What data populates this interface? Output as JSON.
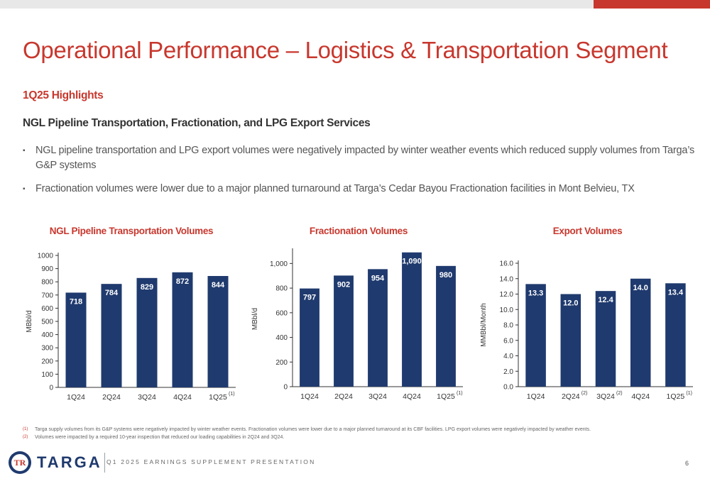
{
  "slide": {
    "title": "Operational Performance – Logistics & Transportation Segment",
    "highlights_heading": "1Q25 Highlights",
    "section_heading": "NGL Pipeline Transportation, Fractionation, and LPG Export Services",
    "bullets": [
      "NGL pipeline transportation and LPG export volumes were negatively impacted by winter weather events which reduced supply volumes from Targa’s G&P systems",
      "Fractionation volumes were lower due to a major planned turnaround at Targa’s Cedar Bayou Fractionation facilities in Mont Belvieu, TX"
    ],
    "bullet_marker": "▪"
  },
  "chart_data": [
    {
      "type": "bar",
      "title": "NGL Pipeline Transportation Volumes",
      "categories": [
        "1Q24",
        "2Q24",
        "3Q24",
        "4Q24",
        "1Q25"
      ],
      "category_superscripts": [
        "",
        "",
        "",
        "",
        "(1)"
      ],
      "values": [
        718,
        784,
        829,
        872,
        844
      ],
      "value_labels": [
        "718",
        "784",
        "829",
        "872",
        "844"
      ],
      "ylabel": "MBbl/d",
      "ylim": [
        0,
        1000
      ],
      "yticks": [
        0,
        100,
        200,
        300,
        400,
        500,
        600,
        700,
        800,
        900,
        1000
      ],
      "ytick_labels": [
        "0",
        "100",
        "200",
        "300",
        "400",
        "500",
        "600",
        "700",
        "800",
        "900",
        "1000"
      ],
      "grid": false,
      "bar_color": "#1f3a6e"
    },
    {
      "type": "bar",
      "title": "Fractionation Volumes",
      "categories": [
        "1Q24",
        "2Q24",
        "3Q24",
        "4Q24",
        "1Q25"
      ],
      "category_superscripts": [
        "",
        "",
        "",
        "",
        "(1)"
      ],
      "values": [
        797,
        902,
        954,
        1090,
        980
      ],
      "value_labels": [
        "797",
        "902",
        "954",
        "1,090",
        "980"
      ],
      "ylabel": "MBbl/d",
      "ylim": [
        0,
        1100
      ],
      "yticks": [
        0,
        200,
        400,
        600,
        800,
        1000
      ],
      "ytick_labels": [
        "0",
        "200",
        "400",
        "600",
        "800",
        "1,000"
      ],
      "grid": false,
      "bar_color": "#1f3a6e"
    },
    {
      "type": "bar",
      "title": "Export Volumes",
      "categories": [
        "1Q24",
        "2Q24",
        "3Q24",
        "4Q24",
        "1Q25"
      ],
      "category_superscripts": [
        "",
        "(2)",
        "(2)",
        "",
        "(1)"
      ],
      "values": [
        13.3,
        12.0,
        12.4,
        14.0,
        13.4
      ],
      "value_labels": [
        "13.3",
        "12.0",
        "12.4",
        "14.0",
        "13.4"
      ],
      "ylabel": "MMBbl/Month",
      "ylim": [
        0,
        16
      ],
      "yticks": [
        0,
        2,
        4,
        6,
        8,
        10,
        12,
        14,
        16
      ],
      "ytick_labels": [
        "0.0",
        "2.0",
        "4.0",
        "6.0",
        "8.0",
        "10.0",
        "12.0",
        "14.0",
        "16.0"
      ],
      "grid": false,
      "bar_color": "#1f3a6e"
    }
  ],
  "footnotes": [
    {
      "marker": "(1)",
      "text": "Targa supply volumes from its G&P systems were negatively impacted by winter weather events. Fractionation volumes were lower due to a major planned turnaround at its CBF facilities. LPG export volumes were negatively impacted by weather events."
    },
    {
      "marker": "(2)",
      "text": "Volumes were impacted by a required 10-year inspection that reduced our loading capabilities in 2Q24 and 3Q24."
    }
  ],
  "footer": {
    "logo_text": "TARGA",
    "logo_mark": "TR",
    "presentation_name": "Q1 2025 EARNINGS SUPPLEMENT PRESENTATION",
    "page_number": "6"
  },
  "colors": {
    "accent_red": "#c8372d",
    "navy": "#1f3a6e"
  }
}
